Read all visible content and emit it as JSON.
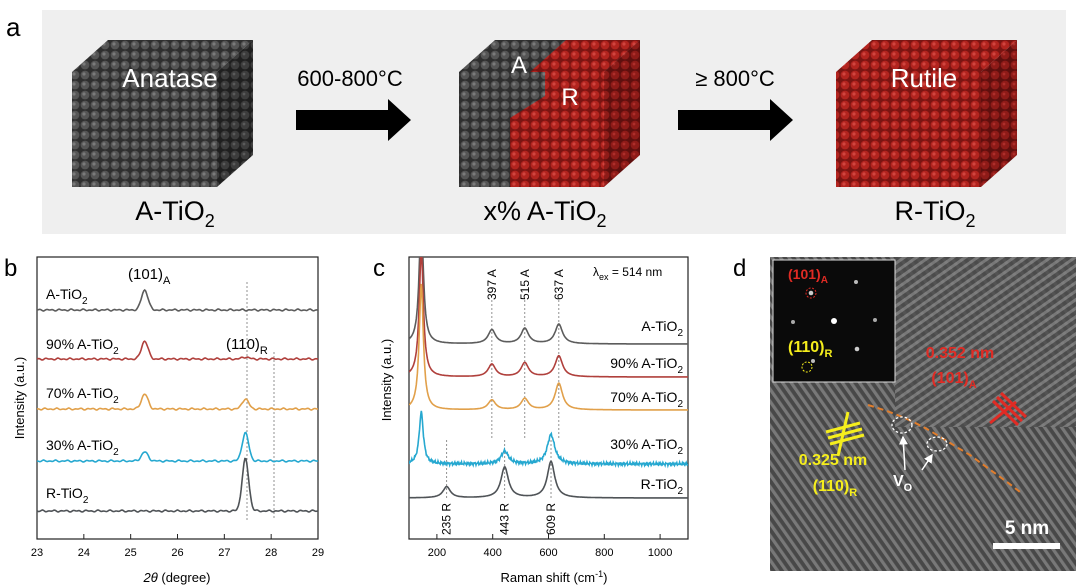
{
  "panel_a": {
    "label": "a",
    "cube_anatase": "Anatase",
    "arrow1": "600-800°C",
    "cube_mixed_A": "A",
    "cube_mixed_R": "R",
    "arrow2": "≥ 800°C",
    "cube_rutile": "Rutile",
    "caption1_main": "A-TiO",
    "caption1_sub": "2",
    "caption2_main": "x% A-TiO",
    "caption2_sub": "2",
    "caption3_main": "R-TiO",
    "caption3_sub": "2"
  },
  "panel_b": {
    "label": "b",
    "peak_A_main": "(101)",
    "peak_A_sub": "A",
    "peak_R_main": "(110)",
    "peak_R_sub": "R",
    "ylabel": "Intensity (a.u.)",
    "xlabel_italic": "2θ",
    "xlabel_rest": " (degree)",
    "samples": [
      {
        "main": "A-TiO",
        "sub": "2"
      },
      {
        "main": "90% A-TiO",
        "sub": "2"
      },
      {
        "main": "70% A-TiO",
        "sub": "2"
      },
      {
        "main": "30% A-TiO",
        "sub": "2"
      },
      {
        "main": "R-TiO",
        "sub": "2"
      }
    ]
  },
  "panel_c": {
    "label": "c",
    "excitation_main": "λ",
    "excitation_sub": "ex",
    "excitation_rest": " = 514 nm",
    "peak_labels_top": [
      "397 A",
      "515 A",
      "637 A"
    ],
    "peak_labels_bottom": [
      "235 R",
      "443 R",
      "609 R"
    ],
    "ylabel": "Intensity (a.u.)",
    "xlabel_main": "Raman shift (cm",
    "xlabel_sup": "-1",
    "xlabel_end": ")",
    "samples": [
      {
        "main": "A-TiO",
        "sub": "2"
      },
      {
        "main": "90% A-TiO",
        "sub": "2"
      },
      {
        "main": "70% A-TiO",
        "sub": "2"
      },
      {
        "main": "30% A-TiO",
        "sub": "2"
      },
      {
        "main": "R-TiO",
        "sub": "2"
      }
    ]
  },
  "panel_d": {
    "label": "d",
    "fft_A_main": "(101)",
    "fft_A_sub": "A",
    "fft_R_main": "(110)",
    "fft_R_sub": "R",
    "d_A_value": "0.352 nm",
    "d_A_main": "(101)",
    "d_A_sub": "A",
    "d_R_value": "0.325 nm",
    "d_R_main": "(110)",
    "d_R_sub": "R",
    "vo_main": "V",
    "vo_sub": "O",
    "scalebar": "5 nm"
  },
  "colors": {
    "anatase": "#3a3a3a",
    "rutile": "#a8211f",
    "c_A": "#5c5c5c",
    "c_90": "#b0403c",
    "c_70": "#e1a04a",
    "c_30": "#26a8d0",
    "c_R": "#4f5357",
    "annot_yellow": "#f5ee1c",
    "annot_red": "#e02b24",
    "vo_orange": "#e07d2c"
  },
  "chart_data": [
    {
      "type": "line",
      "title": "",
      "xlabel": "2θ (degree)",
      "ylabel": "Intensity (a.u.)",
      "xlim": [
        23,
        29
      ],
      "x_ticks": [
        23,
        24,
        25,
        26,
        27,
        28,
        29
      ],
      "yticks_shown": false,
      "series": [
        {
          "name": "A-TiO2",
          "peaks": [
            {
              "x": 25.3,
              "height": 1.0
            }
          ]
        },
        {
          "name": "90% A-TiO2",
          "peaks": [
            {
              "x": 25.3,
              "height": 0.9
            },
            {
              "x": 27.45,
              "height": 0.1
            }
          ]
        },
        {
          "name": "70% A-TiO2",
          "peaks": [
            {
              "x": 25.3,
              "height": 0.75
            },
            {
              "x": 27.45,
              "height": 0.5
            }
          ]
        },
        {
          "name": "30% A-TiO2",
          "peaks": [
            {
              "x": 25.3,
              "height": 0.45
            },
            {
              "x": 27.45,
              "height": 1.4
            }
          ]
        },
        {
          "name": "R-TiO2",
          "peaks": [
            {
              "x": 27.45,
              "height": 2.6
            }
          ]
        }
      ],
      "annotations": [
        "(101)A at 25.3",
        "(110)R at 27.45"
      ]
    },
    {
      "type": "line",
      "title": "",
      "xlabel": "Raman shift (cm-1)",
      "ylabel": "Intensity (a.u.)",
      "xlim": [
        100,
        1100
      ],
      "x_ticks": [
        200,
        400,
        600,
        800,
        1000
      ],
      "yticks_shown": false,
      "series": [
        {
          "name": "A-TiO2",
          "peaks": [
            {
              "x": 144,
              "height": 9
            },
            {
              "x": 397,
              "height": 1.0
            },
            {
              "x": 515,
              "height": 1.1
            },
            {
              "x": 637,
              "height": 1.4
            }
          ]
        },
        {
          "name": "90% A-TiO2",
          "peaks": [
            {
              "x": 144,
              "height": 9
            },
            {
              "x": 397,
              "height": 0.9
            },
            {
              "x": 515,
              "height": 1.0
            },
            {
              "x": 637,
              "height": 1.5
            }
          ]
        },
        {
          "name": "70% A-TiO2",
          "peaks": [
            {
              "x": 144,
              "height": 9
            },
            {
              "x": 397,
              "height": 0.7
            },
            {
              "x": 515,
              "height": 0.8
            },
            {
              "x": 637,
              "height": 1.9
            }
          ]
        },
        {
          "name": "30% A-TiO2",
          "peaks": [
            {
              "x": 144,
              "height": 3.7
            },
            {
              "x": 443,
              "height": 0.9
            },
            {
              "x": 609,
              "height": 2.1
            }
          ]
        },
        {
          "name": "R-TiO2",
          "peaks": [
            {
              "x": 235,
              "height": 0.8
            },
            {
              "x": 443,
              "height": 2.2
            },
            {
              "x": 609,
              "height": 2.6
            }
          ]
        }
      ],
      "annotations": [
        "397 A",
        "515 A",
        "637 A",
        "235 R",
        "443 R",
        "609 R",
        "λex = 514 nm"
      ]
    }
  ]
}
